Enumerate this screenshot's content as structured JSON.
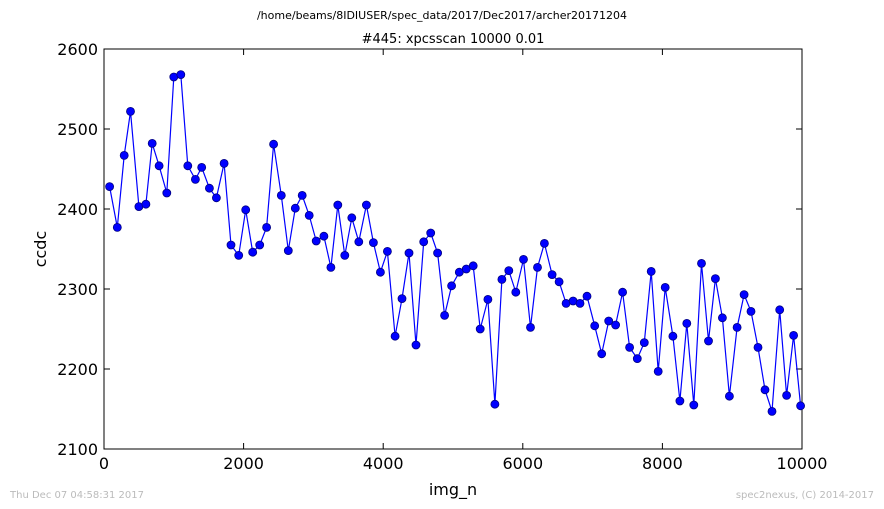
{
  "header": {
    "suptitle": "/home/beams/8IDIUSER/spec_data/2017/Dec2017/archer20171204",
    "title": "#445: xpcsscan 10000 0.01"
  },
  "footer": {
    "left": "Thu Dec 07 04:58:31 2017",
    "right": "spec2nexus, (C) 2014-2017"
  },
  "colors": {
    "line": "#0000ff",
    "marker_fill": "#0000ff",
    "marker_edge": "#000080"
  },
  "chart_data": {
    "type": "line",
    "xlabel": "img_n",
    "ylabel": "ccdc",
    "xlim": [
      0,
      10000
    ],
    "ylim": [
      2100,
      2600
    ],
    "xticks": [
      0,
      2000,
      4000,
      6000,
      8000,
      10000
    ],
    "yticks": [
      2100,
      2200,
      2300,
      2400,
      2500,
      2600
    ],
    "xtick_labels": [
      "0",
      "2000",
      "4000",
      "6000",
      "8000",
      "10000"
    ],
    "ytick_labels": [
      "2100",
      "2200",
      "2300",
      "2400",
      "2500",
      "2600"
    ],
    "grid": false,
    "marker": "circle",
    "series": [
      {
        "x": [
          80,
          190,
          290,
          380,
          500,
          600,
          690,
          790,
          900,
          1000,
          1100,
          1200,
          1310,
          1400,
          1510,
          1610,
          1720,
          1820,
          1930,
          2030,
          2130,
          2230,
          2330,
          2430,
          2540,
          2640,
          2740,
          2840,
          2940,
          3040,
          3150,
          3250,
          3350,
          3450,
          3550,
          3650,
          3760,
          3860,
          3960,
          4060,
          4170,
          4270,
          4370,
          4470,
          4580,
          4680,
          4780,
          4880,
          4980,
          5090,
          5190,
          5290,
          5390,
          5500,
          5600,
          5700,
          5800,
          5900,
          6010,
          6110,
          6210,
          6310,
          6420,
          6520,
          6620,
          6720,
          6820,
          6920,
          7030,
          7130,
          7230,
          7330,
          7430,
          7530,
          7640,
          7740,
          7840,
          7940,
          8040,
          8150,
          8250,
          8350,
          8450,
          8560,
          8660,
          8760,
          8860,
          8960,
          9070,
          9170,
          9270,
          9370,
          9470,
          9570,
          9680,
          9780,
          9880,
          9980
        ],
        "y": [
          2428,
          2377,
          2467,
          2522,
          2403,
          2406,
          2482,
          2454,
          2420,
          2565,
          2568,
          2454,
          2437,
          2452,
          2426,
          2414,
          2457,
          2355,
          2342,
          2399,
          2346,
          2355,
          2377,
          2481,
          2417,
          2348,
          2401,
          2417,
          2392,
          2360,
          2366,
          2327,
          2405,
          2342,
          2389,
          2359,
          2405,
          2358,
          2321,
          2347,
          2241,
          2288,
          2345,
          2230,
          2359,
          2370,
          2345,
          2267,
          2304,
          2321,
          2325,
          2329,
          2250,
          2287,
          2156,
          2312,
          2323,
          2296,
          2337,
          2252,
          2327,
          2357,
          2318,
          2309,
          2282,
          2285,
          2282,
          2291,
          2254,
          2219,
          2260,
          2255,
          2296,
          2227,
          2213,
          2233,
          2322,
          2197,
          2302,
          2241,
          2160,
          2257,
          2155,
          2332,
          2235,
          2313,
          2264,
          2166,
          2252,
          2293,
          2272,
          2227,
          2174,
          2147,
          2274,
          2167,
          2242,
          2154
        ]
      }
    ]
  }
}
